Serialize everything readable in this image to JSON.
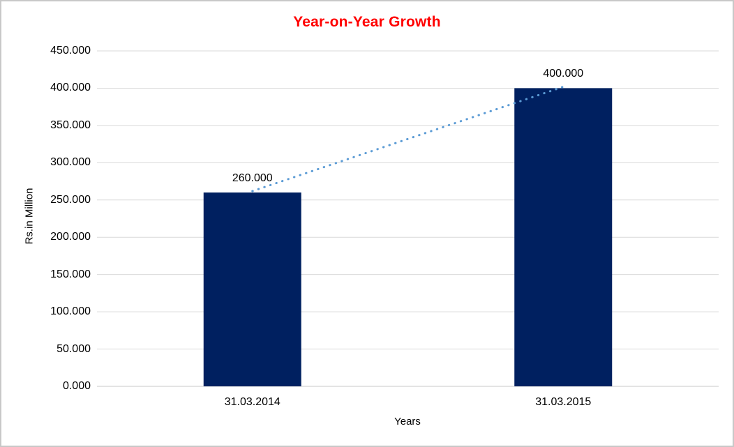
{
  "window": {
    "background": "#FFFFFF",
    "border_color": "#C8C8C8"
  },
  "chart_data": {
    "type": "bar",
    "title": "Year-on-Year Growth",
    "title_color": "#FF0000",
    "xlabel": "Years",
    "ylabel": "Rs.in Million",
    "categories": [
      "31.03.2014",
      "31.03.2015"
    ],
    "values": [
      260,
      400
    ],
    "data_labels": [
      "260.000",
      "400.000"
    ],
    "ylim": [
      0,
      450
    ],
    "ytick_values": [
      0,
      50,
      100,
      150,
      200,
      250,
      300,
      350,
      400,
      450
    ],
    "ytick_labels": [
      "0.000",
      "50.000",
      "100.000",
      "150.000",
      "200.000",
      "250.000",
      "300.000",
      "350.000",
      "400.000",
      "450.000"
    ],
    "grid": "horizontal",
    "legend": "none",
    "bar_color": "#002060",
    "gridline_color": "#D9D9D9",
    "axis_line_color": "#C9C9C9",
    "trendline": {
      "style": "dotted",
      "color": "#5B9BD5",
      "from_category": "31.03.2014",
      "from_value": 260,
      "to_category": "31.03.2015",
      "to_value": 400
    }
  }
}
